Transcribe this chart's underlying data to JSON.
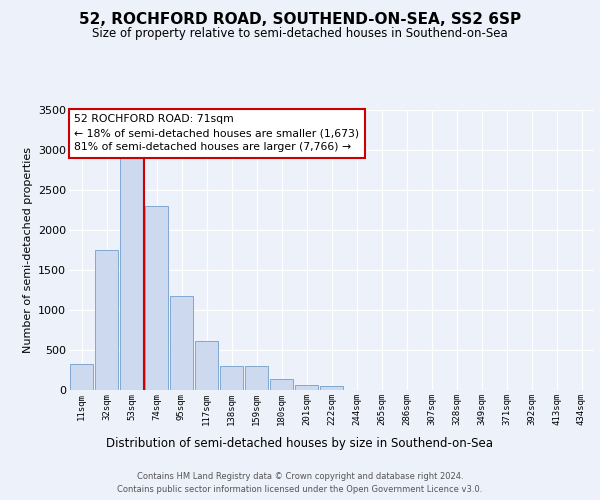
{
  "title": "52, ROCHFORD ROAD, SOUTHEND-ON-SEA, SS2 6SP",
  "subtitle": "Size of property relative to semi-detached houses in Southend-on-Sea",
  "xlabel": "Distribution of semi-detached houses by size in Southend-on-Sea",
  "ylabel": "Number of semi-detached properties",
  "annotation_line1": "52 ROCHFORD ROAD: 71sqm",
  "annotation_line2": "← 18% of semi-detached houses are smaller (1,673)",
  "annotation_line3": "81% of semi-detached houses are larger (7,766) →",
  "bar_labels": [
    "11sqm",
    "32sqm",
    "53sqm",
    "74sqm",
    "95sqm",
    "117sqm",
    "138sqm",
    "159sqm",
    "180sqm",
    "201sqm",
    "222sqm",
    "244sqm",
    "265sqm",
    "286sqm",
    "307sqm",
    "328sqm",
    "349sqm",
    "371sqm",
    "392sqm",
    "413sqm",
    "434sqm"
  ],
  "bar_heights": [
    330,
    1750,
    2900,
    2300,
    1170,
    610,
    300,
    300,
    140,
    60,
    50,
    0,
    0,
    0,
    0,
    0,
    0,
    0,
    0,
    0,
    0
  ],
  "bar_color": "#ccd9ee",
  "bar_edge_color": "#7fa8d0",
  "vline_x": 2.5,
  "vline_color": "#cc0000",
  "ylim_max": 3500,
  "yticks": [
    0,
    500,
    1000,
    1500,
    2000,
    2500,
    3000,
    3500
  ],
  "background_color": "#edf1fa",
  "grid_color": "#ffffff",
  "annotation_box_edgecolor": "#cc0000",
  "footer_line1": "Contains HM Land Registry data © Crown copyright and database right 2024.",
  "footer_line2": "Contains public sector information licensed under the Open Government Licence v3.0."
}
